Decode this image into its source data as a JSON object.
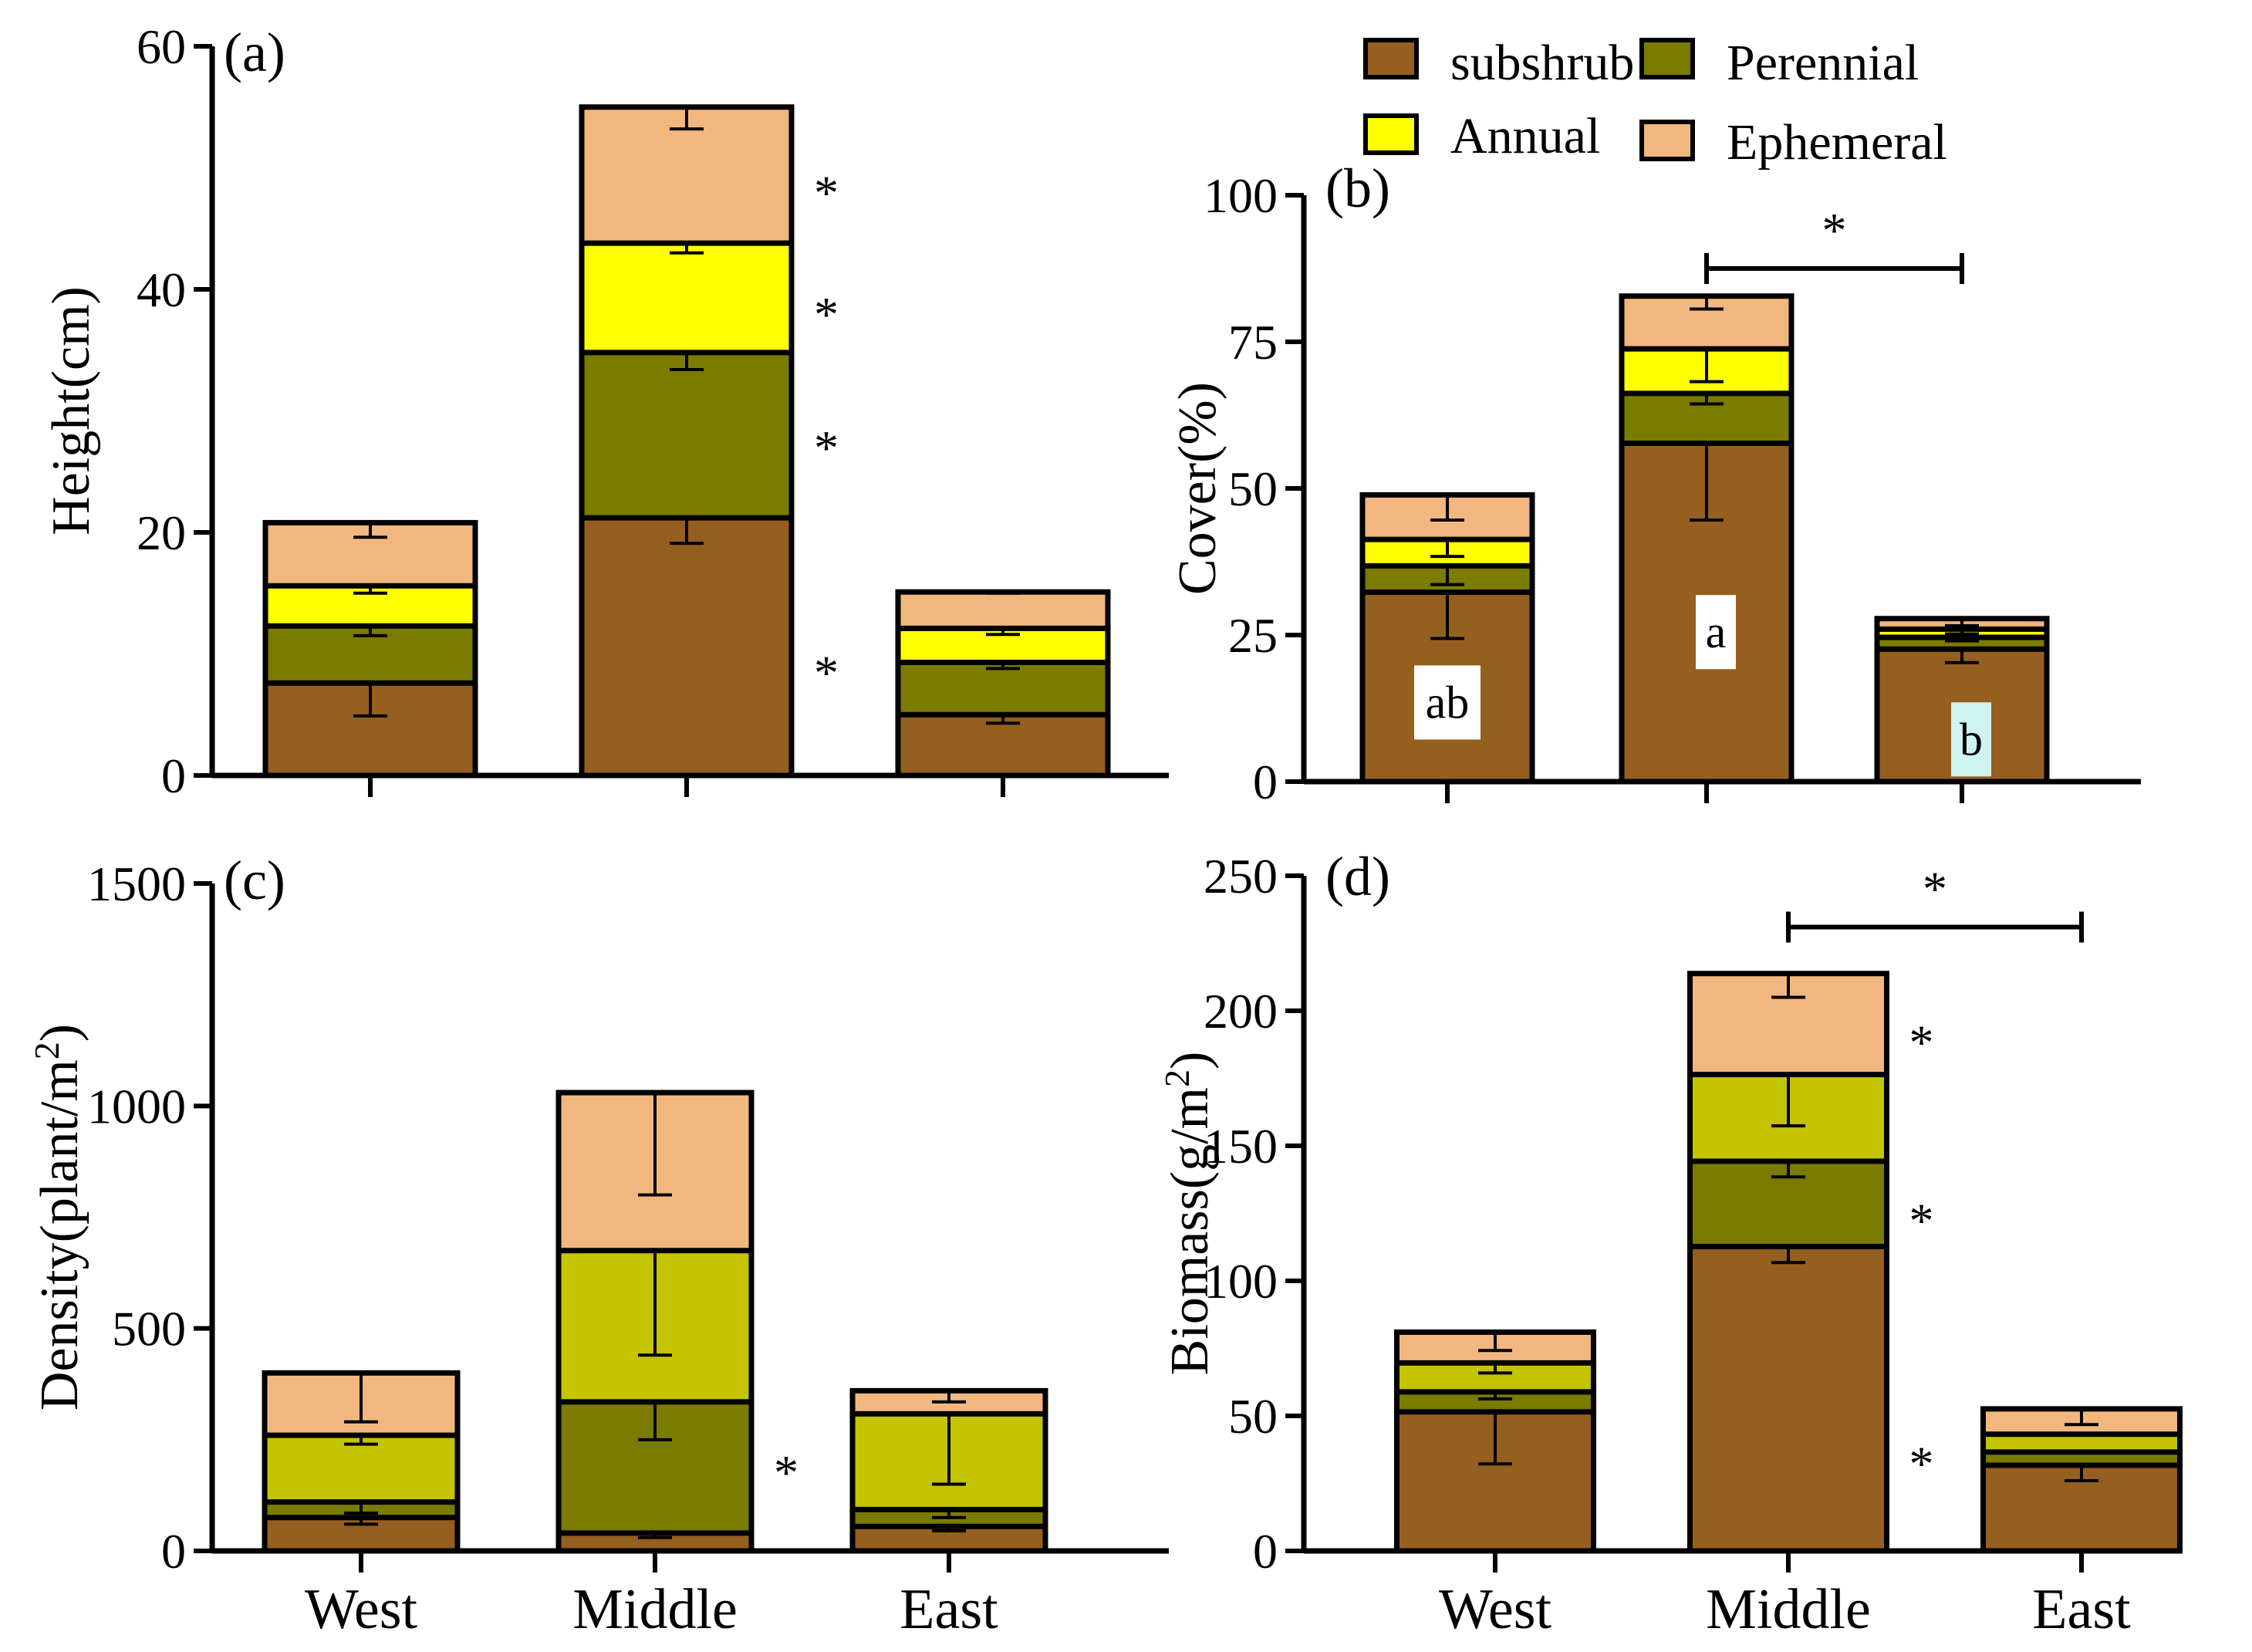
{
  "colors": {
    "subshrub": "#955F20",
    "perennial": "#7B7B00",
    "annual": "#FFFF00",
    "annual_lime": "#C4C400",
    "ephemeral": "#F2B77F",
    "letter_b_bg": "#CFF3EE",
    "stroke": "#000000"
  },
  "legend": {
    "items": [
      {
        "key": "subshrub",
        "label": "subshrub",
        "color": "#955F20"
      },
      {
        "key": "perennial",
        "label": "Perennial",
        "color": "#7B7B00"
      },
      {
        "key": "annual",
        "label": "Annual",
        "color": "#FFFF00"
      },
      {
        "key": "ephemeral",
        "label": "Ephemeral",
        "color": "#F2B77F"
      }
    ]
  },
  "chart_data": [
    {
      "id": "a",
      "panel_label": "(a)",
      "type": "bar",
      "stacked": true,
      "ylabel": "Height(cm)",
      "xlabel": "",
      "ylim": [
        0,
        60
      ],
      "yticks": [
        "0",
        "20",
        "40",
        "60"
      ],
      "categories": [
        "West",
        "Middle",
        "East"
      ],
      "show_category_labels": false,
      "series": [
        {
          "name": "subshrub",
          "color": "#955F20",
          "values": [
            7.6,
            21.2,
            5.0
          ],
          "error_low": [
            4.9,
            19.1,
            4.3
          ]
        },
        {
          "name": "Perennial",
          "color": "#7B7B00",
          "values": [
            4.7,
            13.6,
            4.3
          ],
          "error_low": [
            11.5,
            33.4,
            8.8
          ]
        },
        {
          "name": "Annual",
          "color": "#FFFF00",
          "values": [
            3.3,
            9.0,
            2.8
          ],
          "error_low": [
            15.0,
            43.0,
            11.6
          ]
        },
        {
          "name": "Ephemeral",
          "color": "#F2B77F",
          "values": [
            5.2,
            11.2,
            3.0
          ],
          "error_low": [
            19.6,
            53.2,
            15.0
          ]
        }
      ],
      "stars": [
        {
          "category": "Middle",
          "y": 9.5,
          "text": "*"
        },
        {
          "category": "Middle",
          "y": 28.0,
          "text": "*"
        },
        {
          "category": "Middle",
          "y": 39.0,
          "text": "*"
        },
        {
          "category": "Middle",
          "y": 49.0,
          "text": "*"
        }
      ],
      "brackets": [],
      "letters": []
    },
    {
      "id": "b",
      "panel_label": "(b)",
      "type": "bar",
      "stacked": true,
      "ylabel": "Cover(%)",
      "xlabel": "",
      "ylim": [
        0,
        100
      ],
      "yticks": [
        "0",
        "25",
        "50",
        "75",
        "100"
      ],
      "categories": [
        "West",
        "Middle",
        "East"
      ],
      "show_category_labels": false,
      "series": [
        {
          "name": "subshrub",
          "color": "#955F20",
          "values": [
            32.3,
            57.7,
            22.6
          ],
          "error_low": [
            24.4,
            44.6,
            20.3
          ]
        },
        {
          "name": "Perennial",
          "color": "#7B7B00",
          "values": [
            4.5,
            8.5,
            2.0
          ],
          "error_low": [
            33.6,
            64.4,
            24.0
          ]
        },
        {
          "name": "Annual",
          "color": "#FFFF00",
          "values": [
            4.5,
            7.6,
            1.4
          ],
          "error_low": [
            38.4,
            68.2,
            25.2
          ]
        },
        {
          "name": "Ephemeral",
          "color": "#F2B77F",
          "values": [
            7.6,
            9.0,
            1.8
          ],
          "error_low": [
            44.6,
            80.6,
            26.6
          ]
        }
      ],
      "stars": [],
      "brackets": [
        {
          "from": "Middle",
          "to": "East",
          "y": 87.5,
          "text": "*"
        }
      ],
      "letters": [
        {
          "category": "West",
          "text": "ab",
          "y": 13.5,
          "bg": "#FFFFFF"
        },
        {
          "category": "Middle",
          "text": "a",
          "y": 25.5,
          "bg": "#FFFFFF"
        },
        {
          "category": "East",
          "text": "b",
          "y": 7.2,
          "bg": "#CFF3EE"
        }
      ]
    },
    {
      "id": "c",
      "panel_label": "(c)",
      "type": "bar",
      "stacked": true,
      "ylabel": "Density(plant/m",
      "ylabel_sup": "2",
      "ylabel_close": ")",
      "xlabel": "",
      "ylim": [
        0,
        1500
      ],
      "yticks": [
        "0",
        "500",
        "1000",
        "1500"
      ],
      "categories": [
        "West",
        "Middle",
        "East"
      ],
      "show_category_labels": true,
      "series": [
        {
          "name": "subshrub",
          "color": "#955F20",
          "values": [
            75,
            40,
            55
          ],
          "error_low": [
            60,
            30,
            45
          ]
        },
        {
          "name": "Perennial",
          "color": "#7B7B00",
          "values": [
            35,
            295,
            38
          ],
          "error_low": [
            85,
            250,
            75
          ]
        },
        {
          "name": "Annual",
          "color": "#C4C400",
          "values": [
            150,
            340,
            215
          ],
          "error_low": [
            240,
            440,
            150
          ]
        },
        {
          "name": "Ephemeral",
          "color": "#F2B77F",
          "values": [
            140,
            355,
            52
          ],
          "error_low": [
            290,
            800,
            335
          ]
        }
      ],
      "stars": [
        {
          "category": "Middle",
          "y": 205,
          "text": "*"
        }
      ],
      "brackets": [],
      "letters": []
    },
    {
      "id": "d",
      "panel_label": "(d)",
      "type": "bar",
      "stacked": true,
      "ylabel": "Biomass(g/m",
      "ylabel_sup": "2",
      "ylabel_close": ")",
      "xlabel": "",
      "ylim": [
        0,
        250
      ],
      "yticks": [
        "0",
        "50",
        "100",
        "150",
        "200",
        "250"
      ],
      "categories": [
        "West",
        "Middle",
        "East"
      ],
      "show_category_labels": true,
      "series": [
        {
          "name": "subshrub",
          "color": "#955F20",
          "values": [
            51.5,
            112.7,
            31.7
          ],
          "error_low": [
            32.2,
            106.8,
            26.0
          ]
        },
        {
          "name": "Perennial",
          "color": "#7B7B00",
          "values": [
            7.4,
            31.6,
            4.9
          ],
          "error_low": [
            56.3,
            138.5,
            36.6
          ]
        },
        {
          "name": "Annual",
          "color": "#C4C400",
          "values": [
            10.7,
            32.1,
            6.6
          ],
          "error_low": [
            65.9,
            157.4,
            43.0
          ]
        },
        {
          "name": "Ephemeral",
          "color": "#F2B77F",
          "values": [
            11.4,
            37.4,
            9.4
          ],
          "error_low": [
            74.2,
            205.0,
            46.8
          ]
        }
      ],
      "stars": [
        {
          "category": "Middle",
          "y": 37.0,
          "text": "*"
        },
        {
          "category": "Middle",
          "y": 127.0,
          "text": "*"
        },
        {
          "category": "Middle",
          "y": 193.0,
          "text": "*"
        }
      ],
      "brackets": [
        {
          "from": "Middle",
          "to": "East",
          "y": 231.0,
          "text": "*"
        }
      ],
      "letters": []
    }
  ]
}
